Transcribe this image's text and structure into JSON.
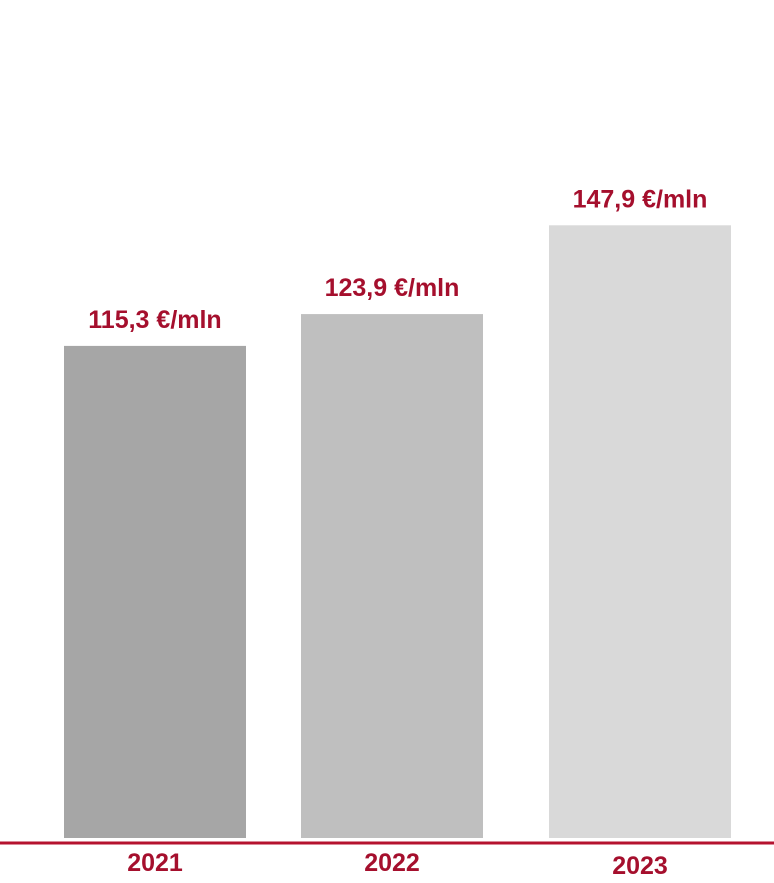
{
  "chart_data": {
    "type": "bar",
    "categories": [
      "2021",
      "2022",
      "2023"
    ],
    "values": [
      115.3,
      123.9,
      147.9
    ],
    "value_labels": [
      "115,3 €/mln",
      "123,9 €/mln",
      "147,9 €/mln"
    ],
    "bar_colors": [
      "#a6a6a6",
      "#bfbfbf",
      "#d9d9d9"
    ],
    "label_color": "#a50f2d",
    "axis_color": "#b5122f",
    "title": "",
    "xlabel": "",
    "ylabel": "",
    "grid": false
  }
}
